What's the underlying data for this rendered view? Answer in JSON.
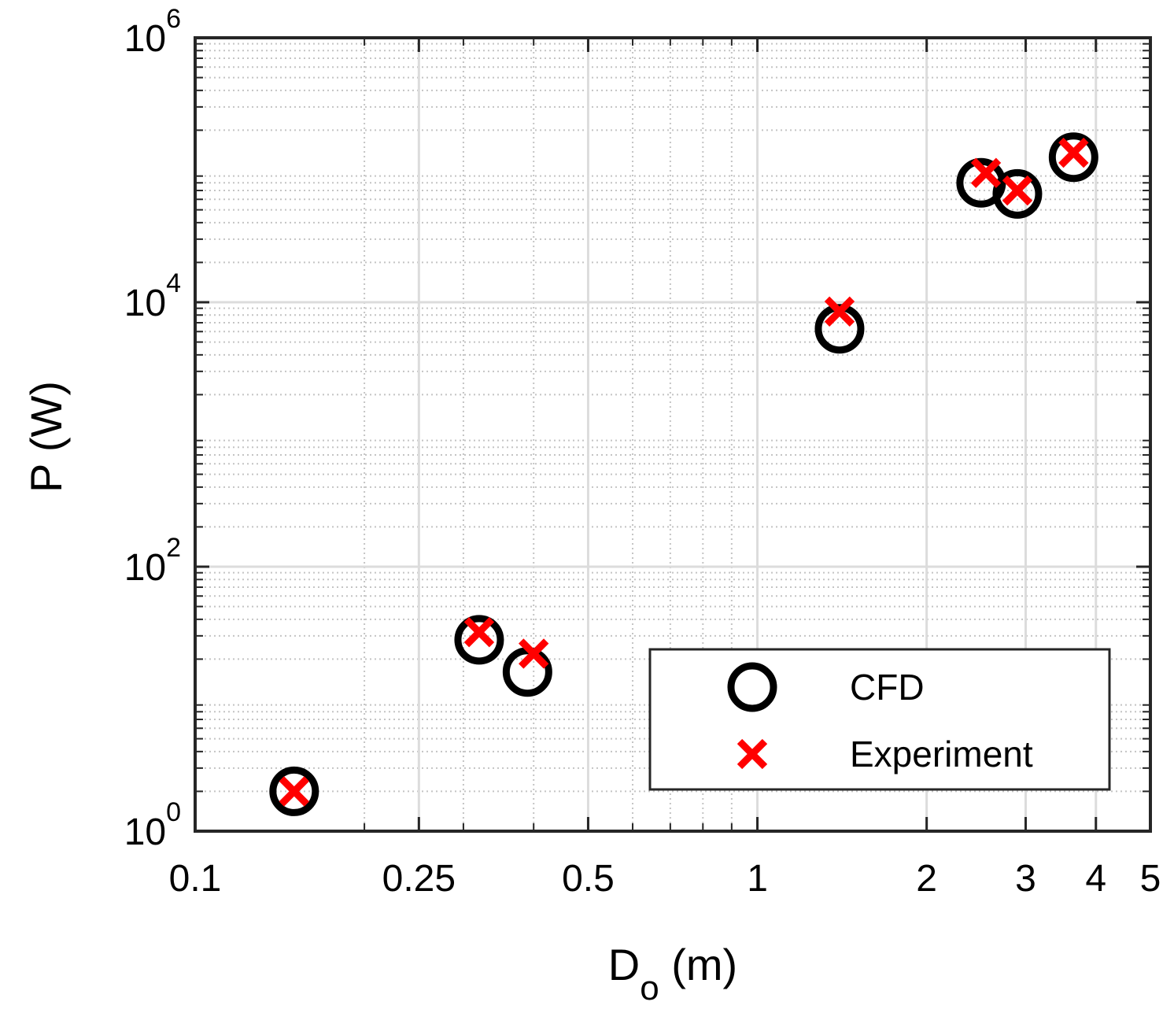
{
  "chart_data": {
    "type": "scatter",
    "xscale": "log",
    "yscale": "log",
    "xlim": [
      0.1,
      5
    ],
    "ylim": [
      1,
      1000000
    ],
    "xticks": [
      {
        "value": 0.1,
        "label": "0.1"
      },
      {
        "value": 0.25,
        "label": "0.25"
      },
      {
        "value": 0.5,
        "label": "0.5"
      },
      {
        "value": 1,
        "label": "1"
      },
      {
        "value": 2,
        "label": "2"
      },
      {
        "value": 3,
        "label": "3"
      },
      {
        "value": 4,
        "label": "4"
      },
      {
        "value": 5,
        "label": "5"
      }
    ],
    "yticks": [
      {
        "value": 1,
        "base": "10",
        "exp": "0"
      },
      {
        "value": 100,
        "base": "10",
        "exp": "2"
      },
      {
        "value": 10000,
        "base": "10",
        "exp": "4"
      },
      {
        "value": 1000000,
        "base": "10",
        "exp": "6"
      }
    ],
    "xlabel": {
      "main": "D",
      "sub": "o",
      "unit": " (m)"
    },
    "ylabel": "P (W)",
    "grid": true,
    "legend_position": "bottom-right",
    "series": [
      {
        "name": "CFD",
        "marker": "circle",
        "color": "#000000",
        "points": [
          {
            "x": 0.15,
            "y": 2
          },
          {
            "x": 0.32,
            "y": 28
          },
          {
            "x": 0.39,
            "y": 16
          },
          {
            "x": 1.4,
            "y": 6300
          },
          {
            "x": 2.5,
            "y": 80000
          },
          {
            "x": 2.9,
            "y": 66000
          },
          {
            "x": 3.65,
            "y": 125000
          }
        ]
      },
      {
        "name": "Experiment",
        "marker": "x",
        "color": "#ff0000",
        "points": [
          {
            "x": 0.15,
            "y": 2
          },
          {
            "x": 0.32,
            "y": 32
          },
          {
            "x": 0.4,
            "y": 22
          },
          {
            "x": 1.4,
            "y": 8500
          },
          {
            "x": 2.55,
            "y": 95000
          },
          {
            "x": 2.9,
            "y": 70000
          },
          {
            "x": 3.65,
            "y": 135000
          }
        ]
      }
    ]
  }
}
